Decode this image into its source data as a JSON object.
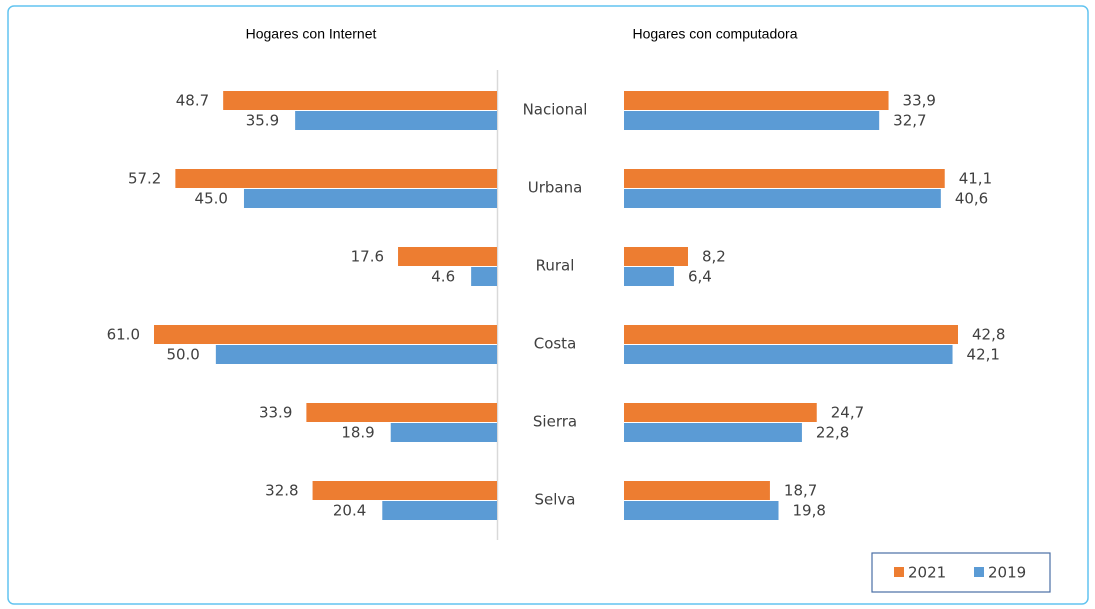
{
  "chart_data": [
    {
      "type": "bar",
      "title": "Hogares con Internet",
      "categories": [
        "Nacional",
        "Urbana",
        "Rural",
        "Costa",
        "Sierra",
        "Selva"
      ],
      "series": [
        {
          "color": "#ed7d31",
          "values": [
            48.7,
            57.2,
            17.6,
            61.0,
            33.9,
            32.8
          ],
          "value_labels": [
            "48.7",
            "57.2",
            "17.6",
            "61.0",
            "33.9",
            "32.8"
          ]
        },
        {
          "color": "#5b9bd5",
          "values": [
            35.9,
            45.0,
            4.6,
            50.0,
            18.9,
            20.4
          ],
          "value_labels": [
            "35.9",
            "45.0",
            "4.6",
            "50.0",
            "18.9",
            "20.4"
          ]
        }
      ]
    },
    {
      "type": "bar",
      "title": "Hogares con computadora",
      "series": [
        {
          "name": "2021",
          "color": "#ed7d31",
          "values": [
            33.9,
            41.1,
            8.2,
            42.8,
            24.7,
            18.7
          ],
          "value_labels": [
            "33,9",
            "41,1",
            "8,2",
            "42,8",
            "24,7",
            "18,7"
          ]
        },
        {
          "name": "2019",
          "color": "#5b9bd5",
          "values": [
            32.7,
            40.6,
            6.4,
            42.1,
            22.8,
            19.8
          ],
          "value_labels": [
            "32,7",
            "40,6",
            "6,4",
            "42,1",
            "22,8",
            "19,8"
          ]
        }
      ]
    }
  ]
}
